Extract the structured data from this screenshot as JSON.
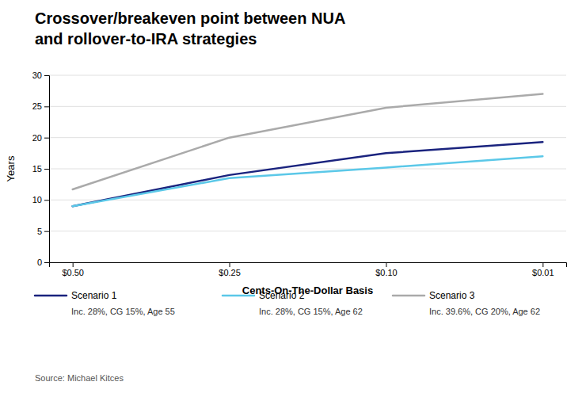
{
  "chart_data": {
    "type": "line",
    "title": [
      "Crossover/breakeven point between NUA",
      "and rollover-to-IRA strategies"
    ],
    "x_label": "Cents-On-The-Dollar Basis",
    "y_label": "Years",
    "annotations": [
      "Source: Michael Kitces"
    ],
    "categories": [
      "$0.50",
      "$0.25",
      "$0.10",
      "$0.01"
    ],
    "series": [
      {
        "name": "Scenario 1",
        "description": "Inc. 28%, CG 15%, Age 55",
        "color": "#1a237e",
        "values": [
          9.0,
          14.0,
          17.5,
          19.3
        ]
      },
      {
        "name": "Scenario 2",
        "description": "Inc. 28%, CG 15%, Age 62",
        "color": "#5bc8e8",
        "values": [
          9.0,
          13.5,
          15.2,
          17.0
        ]
      },
      {
        "name": "Scenario 3",
        "description": "Inc. 39.6%, CG 20%, Age 62",
        "color": "#aaaaaa",
        "values": [
          11.7,
          20.0,
          24.8,
          27.0
        ]
      }
    ],
    "ylim": [
      0,
      30
    ],
    "yticks": [
      0,
      5,
      10,
      15,
      20,
      25,
      30
    ],
    "grid": true,
    "legend": "bottom"
  }
}
